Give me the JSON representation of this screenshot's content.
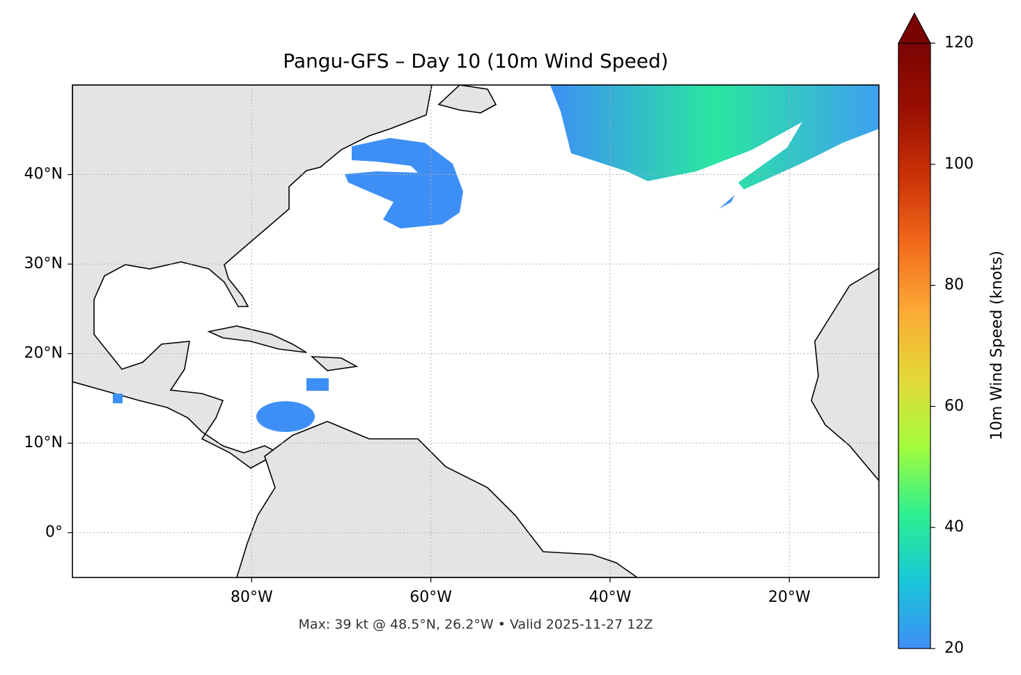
{
  "chart_data": {
    "type": "map",
    "title": "Pangu-GFS – Day 10 (10m Wind Speed)",
    "footnote": "Max: 39 kt @ 48.5°N, 26.2°W • Valid 2025-11-27 12Z",
    "xlim": [
      -100,
      -10
    ],
    "ylim": [
      -5,
      50
    ],
    "xticks": [
      {
        "value": -80,
        "label": "80°W"
      },
      {
        "value": -60,
        "label": "60°W"
      },
      {
        "value": -40,
        "label": "40°W"
      },
      {
        "value": -20,
        "label": "20°W"
      }
    ],
    "yticks": [
      {
        "value": 0,
        "label": "0°"
      },
      {
        "value": 10,
        "label": "10°N"
      },
      {
        "value": 20,
        "label": "20°N"
      },
      {
        "value": 30,
        "label": "30°N"
      },
      {
        "value": 40,
        "label": "40°N"
      }
    ],
    "grid": true,
    "colorbar": {
      "label": "10m Wind Speed (knots)",
      "lim": [
        20,
        120
      ],
      "ticks": [
        20,
        40,
        60,
        80,
        100,
        120
      ],
      "colors": [
        "#3e8ef7",
        "#1ac7d9",
        "#2cf08f",
        "#a4fc3c",
        "#e3d937",
        "#fcab36",
        "#f26b1c",
        "#cc3207",
        "#9a1002",
        "#7a0403"
      ]
    }
  }
}
